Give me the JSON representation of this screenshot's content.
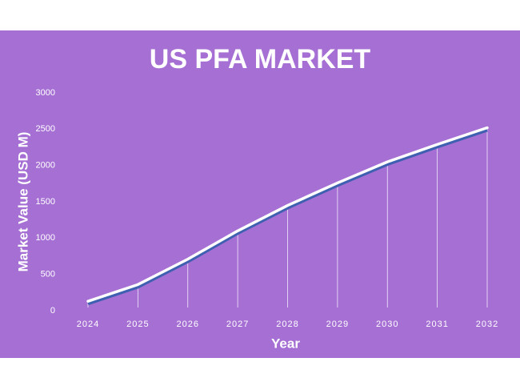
{
  "chart_data": {
    "type": "line",
    "title": "US PFA MARKET",
    "x_label": "Year",
    "y_label": "Market Value (USD M)",
    "categories": [
      "2024",
      "2025",
      "2026",
      "2027",
      "2028",
      "2029",
      "2030",
      "2031",
      "2032"
    ],
    "values": [
      130,
      360,
      710,
      1100,
      1450,
      1760,
      2050,
      2290,
      2520
    ],
    "color": "#ffffff",
    "ylim": [
      0,
      3000
    ],
    "yticks": [
      0,
      500,
      1000,
      1500,
      2000,
      2500,
      3000
    ],
    "drop_lines": true
  }
}
